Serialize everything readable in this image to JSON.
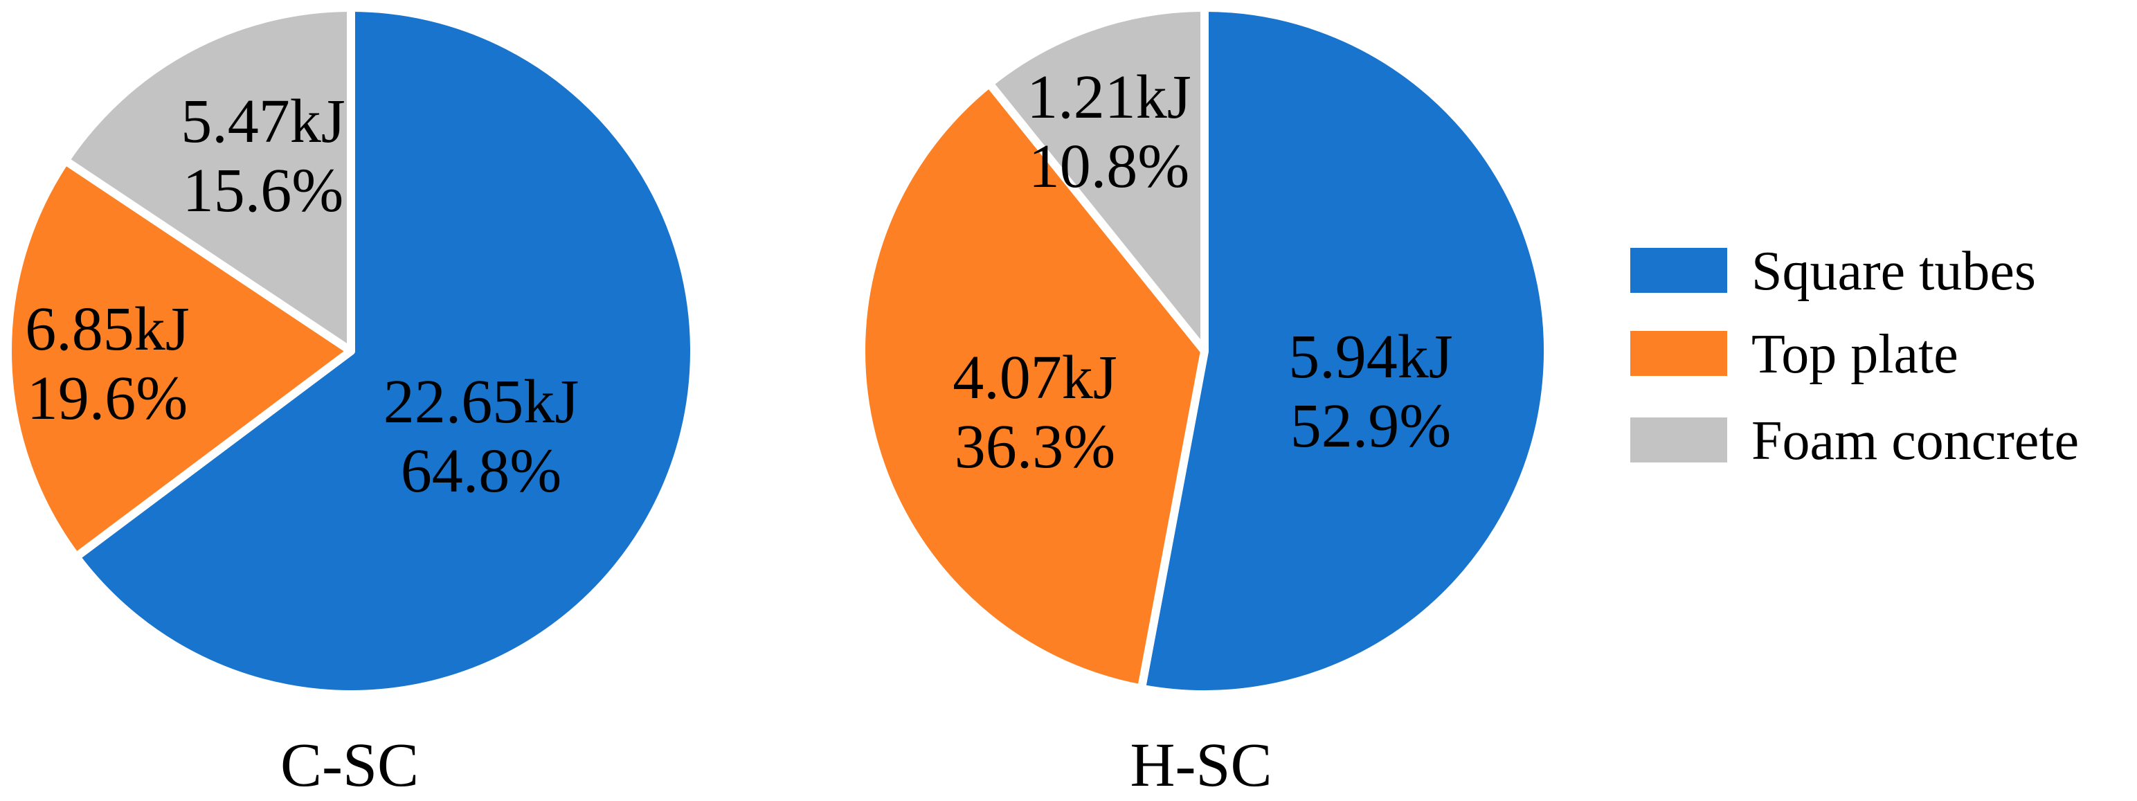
{
  "legend": {
    "entries": [
      {
        "label": "Square tubes",
        "color": "#1874CD"
      },
      {
        "label": "Top plate",
        "color": "#FD8124"
      },
      {
        "label": "Foam concrete",
        "color": "#C3C3C3"
      }
    ]
  },
  "chart_data": [
    {
      "type": "pie",
      "caption": "C-SC",
      "categories": [
        "Square tubes",
        "Top plate",
        "Foam concrete"
      ],
      "values": [
        22.65,
        6.85,
        5.47
      ],
      "percentages": [
        64.8,
        19.6,
        15.6
      ],
      "unit": "kJ",
      "value_labels": [
        "22.65kJ",
        "6.85kJ",
        "5.47kJ"
      ],
      "percent_labels": [
        "64.8%",
        "19.6%",
        "15.6%"
      ],
      "colors": [
        "#1874CD",
        "#FD8124",
        "#C3C3C3"
      ],
      "start": "12 o'clock",
      "direction": "clockwise",
      "legend": "right"
    },
    {
      "type": "pie",
      "caption": "H-SC",
      "categories": [
        "Square tubes",
        "Top plate",
        "Foam concrete"
      ],
      "values": [
        5.94,
        4.07,
        1.21
      ],
      "percentages": [
        52.9,
        36.3,
        10.8
      ],
      "unit": "kJ",
      "value_labels": [
        "5.94kJ",
        "4.07kJ",
        "1.21kJ"
      ],
      "percent_labels": [
        "52.9%",
        "36.3%",
        "10.8%"
      ],
      "colors": [
        "#1874CD",
        "#FD8124",
        "#C3C3C3"
      ],
      "start": "12 o'clock",
      "direction": "clockwise",
      "legend": "right"
    }
  ]
}
